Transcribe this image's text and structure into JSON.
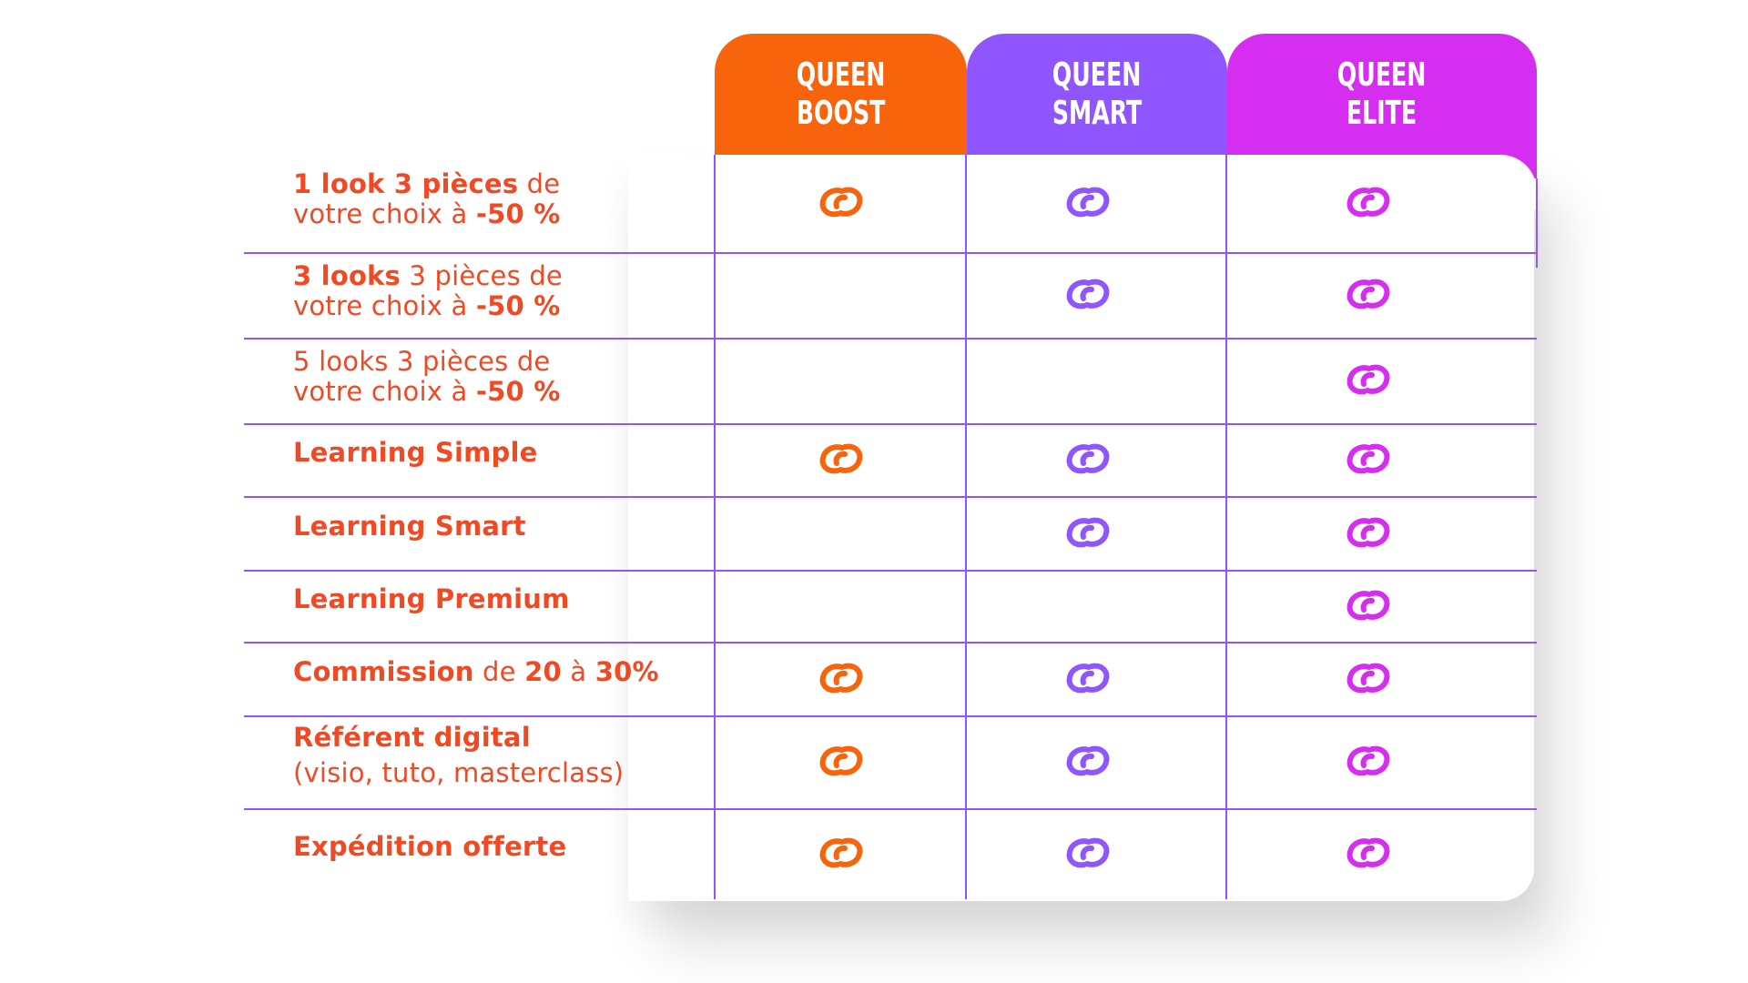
{
  "colors": {
    "boost": "#f7640c",
    "smart": "#8f55ff",
    "elite": "#d62ef0",
    "label_text": "#f04a24",
    "grid_line": "#8f55ff"
  },
  "plans": [
    {
      "key": "boost",
      "line1": "QUEEN",
      "line2": "BOOST"
    },
    {
      "key": "smart",
      "line1": "QUEEN",
      "line2": "SMART"
    },
    {
      "key": "elite",
      "line1": "QUEEN",
      "line2": "ELITE"
    }
  ],
  "check_icon": "link-check-icon",
  "features": [
    {
      "parts": [
        [
          "b",
          "1 look 3 pièces"
        ],
        [
          "n",
          " de"
        ],
        [
          "br",
          ""
        ],
        [
          "n",
          "votre choix à "
        ],
        [
          "b",
          "-50 %"
        ]
      ],
      "boost": true,
      "smart": true,
      "elite": true
    },
    {
      "parts": [
        [
          "b",
          "3 looks"
        ],
        [
          "n",
          " 3 pièces de"
        ],
        [
          "br",
          ""
        ],
        [
          "n",
          "votre choix à "
        ],
        [
          "b",
          "-50 %"
        ]
      ],
      "boost": false,
      "smart": true,
      "elite": true
    },
    {
      "parts": [
        [
          "n",
          "5 looks 3 pièces de"
        ],
        [
          "br",
          ""
        ],
        [
          "n",
          "votre choix à "
        ],
        [
          "b",
          "-50 %"
        ]
      ],
      "boost": false,
      "smart": false,
      "elite": true
    },
    {
      "parts": [
        [
          "b",
          "Learning Simple"
        ]
      ],
      "boost": true,
      "smart": true,
      "elite": true
    },
    {
      "parts": [
        [
          "b",
          "Learning Smart"
        ]
      ],
      "boost": false,
      "smart": true,
      "elite": true
    },
    {
      "parts": [
        [
          "b",
          "Learning Premium"
        ]
      ],
      "boost": false,
      "smart": false,
      "elite": true
    },
    {
      "parts": [
        [
          "b",
          "Commission"
        ],
        [
          "n",
          " de "
        ],
        [
          "b",
          "20"
        ],
        [
          "n",
          " à "
        ],
        [
          "b",
          "30%"
        ]
      ],
      "boost": true,
      "smart": true,
      "elite": true
    },
    {
      "parts": [
        [
          "b",
          "Référent digital"
        ],
        [
          "br",
          ""
        ],
        [
          "n",
          "(visio, tuto, masterclass)"
        ]
      ],
      "boost": true,
      "smart": true,
      "elite": true
    },
    {
      "parts": [
        [
          "b",
          "Expédition offerte"
        ]
      ],
      "boost": true,
      "smart": true,
      "elite": true
    }
  ]
}
